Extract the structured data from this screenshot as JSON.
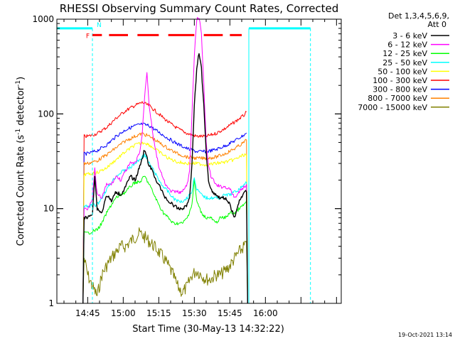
{
  "chart_data": {
    "type": "line",
    "title": "RHESSI Observing Summary Count Rates, Corrected",
    "xlabel": "Start Time (30-May-13 14:32:22)",
    "ylabel": "Corrected Count Rate (s⁻¹ detector⁻¹)",
    "ylabel_main": "Corrected Count Rate (s",
    "ylabel_sup1": "-1",
    "ylabel_mid": " detector",
    "ylabel_sup2": "-1",
    "ylabel_end": ")",
    "y_scale": "log",
    "xlim_min": [
      -13,
      107
    ],
    "ylim": [
      1,
      1000
    ],
    "x_ticks": [
      "14:45",
      "15:00",
      "15:15",
      "15:30",
      "15:45",
      "16:00"
    ],
    "x_tick_min": [
      0,
      15,
      30,
      45,
      60,
      75
    ],
    "y_ticks": [
      "1",
      "10",
      "100",
      "1000"
    ],
    "y_tick_values": [
      1,
      10,
      100,
      1000
    ],
    "timestamp": "19-Oct-2021 13:14",
    "legend": {
      "header1": "Det 1,3,4,5,6,9,",
      "header2": "Att 0",
      "placement": "right"
    },
    "flags": {
      "F": "F",
      "N": "N"
    },
    "night_boundaries_min": [
      -13,
      2,
      68,
      94
    ],
    "fast_segments_min": [
      [
        2,
        6
      ],
      [
        9,
        17
      ],
      [
        21,
        30
      ],
      [
        34,
        45
      ],
      [
        49,
        57
      ],
      [
        60,
        65
      ]
    ],
    "night_level": 800,
    "series": [
      {
        "name": "3 - 6 keV",
        "color": "#000000",
        "values": [
          [
            -2,
            1
          ],
          [
            -1.5,
            8
          ],
          [
            0,
            8
          ],
          [
            2,
            9
          ],
          [
            3,
            22
          ],
          [
            4,
            10
          ],
          [
            6,
            9
          ],
          [
            8,
            14
          ],
          [
            10,
            12
          ],
          [
            12,
            15
          ],
          [
            14,
            14
          ],
          [
            16,
            17
          ],
          [
            18,
            22
          ],
          [
            20,
            20
          ],
          [
            22,
            28
          ],
          [
            24,
            42
          ],
          [
            26,
            28
          ],
          [
            27,
            26
          ],
          [
            28,
            22
          ],
          [
            30,
            18
          ],
          [
            32,
            14
          ],
          [
            34,
            12
          ],
          [
            36,
            11
          ],
          [
            38,
            10
          ],
          [
            40,
            10
          ],
          [
            42,
            11
          ],
          [
            43,
            13
          ],
          [
            44,
            30
          ],
          [
            45,
            120
          ],
          [
            46,
            300
          ],
          [
            47,
            450
          ],
          [
            48,
            300
          ],
          [
            49,
            120
          ],
          [
            50,
            40
          ],
          [
            51,
            20
          ],
          [
            52,
            16
          ],
          [
            54,
            14
          ],
          [
            56,
            13
          ],
          [
            58,
            13
          ],
          [
            60,
            11
          ],
          [
            62,
            8
          ],
          [
            64,
            12
          ],
          [
            66,
            15
          ],
          [
            67,
            15
          ],
          [
            67.5,
            1
          ]
        ]
      },
      {
        "name": "6 - 12 keV",
        "color": "#ff00ff",
        "values": [
          [
            -2,
            1
          ],
          [
            -1.5,
            10
          ],
          [
            0,
            10
          ],
          [
            2,
            13
          ],
          [
            3,
            26
          ],
          [
            4,
            14
          ],
          [
            6,
            13
          ],
          [
            8,
            18
          ],
          [
            10,
            18
          ],
          [
            12,
            22
          ],
          [
            14,
            20
          ],
          [
            16,
            25
          ],
          [
            18,
            30
          ],
          [
            20,
            30
          ],
          [
            22,
            40
          ],
          [
            23,
            60
          ],
          [
            24,
            150
          ],
          [
            25,
            280
          ],
          [
            26,
            120
          ],
          [
            28,
            50
          ],
          [
            30,
            28
          ],
          [
            32,
            20
          ],
          [
            34,
            16
          ],
          [
            36,
            15
          ],
          [
            38,
            15
          ],
          [
            40,
            15
          ],
          [
            42,
            18
          ],
          [
            43,
            25
          ],
          [
            44,
            100
          ],
          [
            45,
            400
          ],
          [
            46,
            1000
          ],
          [
            47,
            1050
          ],
          [
            48,
            700
          ],
          [
            49,
            200
          ],
          [
            50,
            50
          ],
          [
            51,
            28
          ],
          [
            52,
            22
          ],
          [
            54,
            18
          ],
          [
            56,
            17
          ],
          [
            58,
            17
          ],
          [
            60,
            16
          ],
          [
            62,
            13
          ],
          [
            64,
            15
          ],
          [
            66,
            17
          ],
          [
            67,
            18
          ],
          [
            67.5,
            1
          ]
        ]
      },
      {
        "name": "12 - 25 keV",
        "color": "#00ff00",
        "values": [
          [
            -2,
            1
          ],
          [
            -1.5,
            5.5
          ],
          [
            0,
            5.5
          ],
          [
            4,
            6
          ],
          [
            6,
            7
          ],
          [
            8,
            9
          ],
          [
            10,
            11
          ],
          [
            12,
            13
          ],
          [
            14,
            14
          ],
          [
            16,
            15
          ],
          [
            18,
            17
          ],
          [
            20,
            19
          ],
          [
            22,
            19
          ],
          [
            24,
            22
          ],
          [
            26,
            18
          ],
          [
            28,
            14
          ],
          [
            30,
            11
          ],
          [
            32,
            9
          ],
          [
            34,
            8
          ],
          [
            36,
            7
          ],
          [
            38,
            7
          ],
          [
            40,
            7
          ],
          [
            42,
            8
          ],
          [
            44,
            11
          ],
          [
            45,
            20
          ],
          [
            46,
            12
          ],
          [
            48,
            9
          ],
          [
            50,
            8
          ],
          [
            52,
            8
          ],
          [
            54,
            7
          ],
          [
            56,
            8
          ],
          [
            58,
            8
          ],
          [
            60,
            9
          ],
          [
            62,
            9
          ],
          [
            64,
            10
          ],
          [
            66,
            11
          ],
          [
            67,
            12
          ],
          [
            67.5,
            1
          ]
        ]
      },
      {
        "name": "25 - 50 keV",
        "color": "#00ffff",
        "values": [
          [
            -2,
            1
          ],
          [
            -1.5,
            10.5
          ],
          [
            0,
            10.5
          ],
          [
            4,
            11
          ],
          [
            6,
            13
          ],
          [
            8,
            16
          ],
          [
            10,
            19
          ],
          [
            12,
            22
          ],
          [
            14,
            24
          ],
          [
            16,
            26
          ],
          [
            18,
            27
          ],
          [
            20,
            30
          ],
          [
            22,
            33
          ],
          [
            24,
            37
          ],
          [
            26,
            30
          ],
          [
            28,
            25
          ],
          [
            30,
            20
          ],
          [
            32,
            17
          ],
          [
            34,
            15
          ],
          [
            36,
            13
          ],
          [
            38,
            12
          ],
          [
            40,
            12
          ],
          [
            42,
            13
          ],
          [
            44,
            15
          ],
          [
            45,
            22
          ],
          [
            46,
            16
          ],
          [
            48,
            14
          ],
          [
            50,
            13
          ],
          [
            52,
            13
          ],
          [
            54,
            13
          ],
          [
            56,
            13
          ],
          [
            58,
            14
          ],
          [
            60,
            14
          ],
          [
            62,
            15
          ],
          [
            64,
            16
          ],
          [
            66,
            18
          ],
          [
            67,
            19
          ],
          [
            67.5,
            1
          ]
        ]
      },
      {
        "name": "50 - 100 keV",
        "color": "#ffff00",
        "values": [
          [
            -2,
            1
          ],
          [
            -1.5,
            23
          ],
          [
            0,
            23
          ],
          [
            4,
            24
          ],
          [
            8,
            27
          ],
          [
            12,
            33
          ],
          [
            16,
            40
          ],
          [
            20,
            47
          ],
          [
            24,
            50
          ],
          [
            26,
            47
          ],
          [
            30,
            40
          ],
          [
            34,
            34
          ],
          [
            38,
            31
          ],
          [
            42,
            30
          ],
          [
            46,
            30
          ],
          [
            50,
            29
          ],
          [
            54,
            30
          ],
          [
            58,
            31
          ],
          [
            62,
            33
          ],
          [
            66,
            37
          ],
          [
            67,
            37
          ],
          [
            67.5,
            1
          ]
        ]
      },
      {
        "name": "100 - 300 keV",
        "color": "#ff0000",
        "values": [
          [
            -2,
            1
          ],
          [
            -1.5,
            58
          ],
          [
            0,
            58
          ],
          [
            4,
            62
          ],
          [
            8,
            72
          ],
          [
            12,
            90
          ],
          [
            16,
            108
          ],
          [
            20,
            123
          ],
          [
            23,
            132
          ],
          [
            26,
            122
          ],
          [
            30,
            100
          ],
          [
            34,
            82
          ],
          [
            38,
            70
          ],
          [
            42,
            62
          ],
          [
            46,
            58
          ],
          [
            50,
            58
          ],
          [
            54,
            62
          ],
          [
            58,
            70
          ],
          [
            62,
            82
          ],
          [
            66,
            97
          ],
          [
            67,
            105
          ]
        ]
      },
      {
        "name": "300 - 800 keV",
        "color": "#0000ff",
        "values": [
          [
            -2,
            1
          ],
          [
            -1.5,
            38
          ],
          [
            0,
            38
          ],
          [
            4,
            41
          ],
          [
            8,
            47
          ],
          [
            12,
            58
          ],
          [
            16,
            68
          ],
          [
            20,
            75
          ],
          [
            23,
            78
          ],
          [
            26,
            75
          ],
          [
            30,
            64
          ],
          [
            34,
            55
          ],
          [
            38,
            48
          ],
          [
            42,
            43
          ],
          [
            46,
            40
          ],
          [
            50,
            40
          ],
          [
            54,
            42
          ],
          [
            58,
            46
          ],
          [
            62,
            52
          ],
          [
            66,
            60
          ],
          [
            67,
            63
          ]
        ]
      },
      {
        "name": "800 - 7000 keV",
        "color": "#ff8000",
        "values": [
          [
            -2,
            1
          ],
          [
            -1.5,
            30
          ],
          [
            0,
            30
          ],
          [
            4,
            32
          ],
          [
            8,
            37
          ],
          [
            12,
            44
          ],
          [
            16,
            52
          ],
          [
            20,
            58
          ],
          [
            23,
            62
          ],
          [
            26,
            58
          ],
          [
            30,
            50
          ],
          [
            34,
            43
          ],
          [
            38,
            38
          ],
          [
            42,
            35
          ],
          [
            46,
            34
          ],
          [
            50,
            34
          ],
          [
            54,
            35
          ],
          [
            58,
            38
          ],
          [
            62,
            43
          ],
          [
            66,
            50
          ],
          [
            67,
            53
          ],
          [
            67.5,
            1
          ]
        ]
      },
      {
        "name": "7000 - 15000 keV",
        "color": "#808000",
        "values": [
          [
            -2,
            1
          ],
          [
            -1.5,
            3
          ],
          [
            0,
            2
          ],
          [
            2,
            1.5
          ],
          [
            4,
            1.2
          ],
          [
            6,
            2
          ],
          [
            8,
            2.5
          ],
          [
            10,
            3
          ],
          [
            12,
            3.5
          ],
          [
            14,
            4
          ],
          [
            16,
            4
          ],
          [
            18,
            4.5
          ],
          [
            20,
            5
          ],
          [
            22,
            5.5
          ],
          [
            24,
            5
          ],
          [
            26,
            4.5
          ],
          [
            28,
            4
          ],
          [
            30,
            3.5
          ],
          [
            32,
            3
          ],
          [
            34,
            2.5
          ],
          [
            36,
            2
          ],
          [
            38,
            1.5
          ],
          [
            40,
            1.3
          ],
          [
            42,
            1.5
          ],
          [
            44,
            2
          ],
          [
            46,
            2.2
          ],
          [
            48,
            2
          ],
          [
            50,
            1.8
          ],
          [
            52,
            1.8
          ],
          [
            54,
            2
          ],
          [
            56,
            2
          ],
          [
            58,
            2.2
          ],
          [
            60,
            2.5
          ],
          [
            62,
            3
          ],
          [
            64,
            3.5
          ],
          [
            66,
            4
          ],
          [
            67,
            4.5
          ],
          [
            67.5,
            1
          ]
        ]
      }
    ]
  }
}
